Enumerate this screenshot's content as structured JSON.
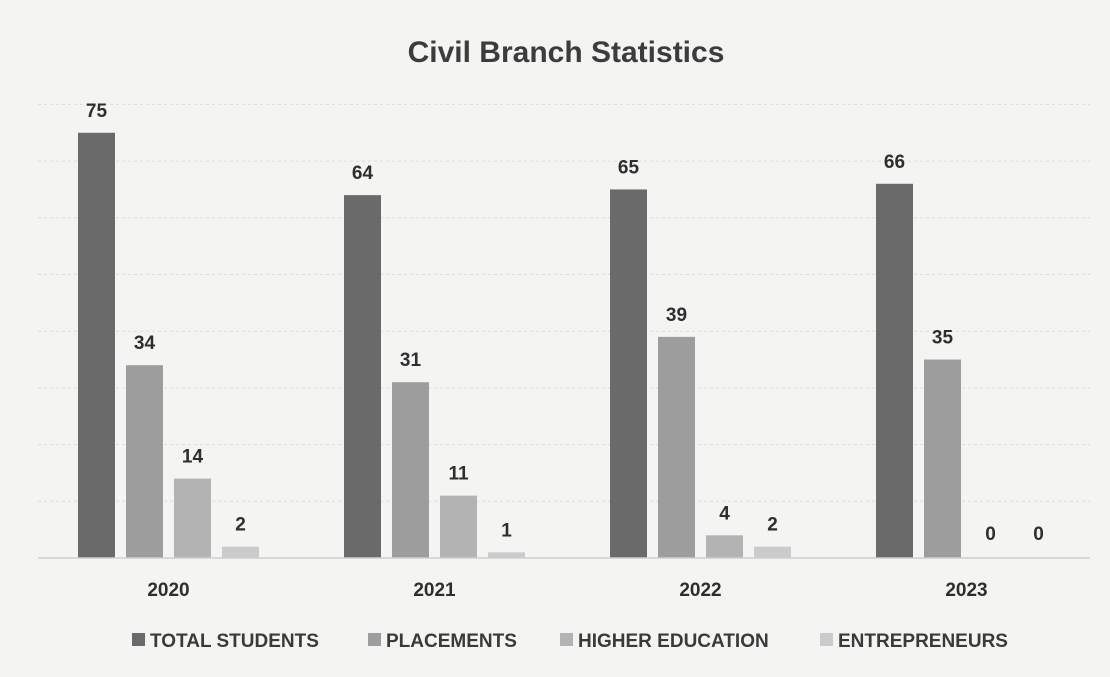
{
  "chart_data": {
    "type": "bar",
    "title": "Civil Branch Statistics",
    "categories": [
      "2020",
      "2021",
      "2022",
      "2023"
    ],
    "series": [
      {
        "name": "TOTAL STUDENTS",
        "color": "#6a6a6a",
        "values": [
          75,
          64,
          65,
          66
        ]
      },
      {
        "name": "PLACEMENTS",
        "color": "#9d9d9d",
        "values": [
          34,
          31,
          39,
          35
        ]
      },
      {
        "name": "HIGHER EDUCATION",
        "color": "#b3b3b3",
        "values": [
          14,
          11,
          4,
          0
        ]
      },
      {
        "name": "ENTREPRENEURS",
        "color": "#cbcbcb",
        "values": [
          2,
          1,
          2,
          0
        ]
      }
    ],
    "ylim": [
      0,
      80
    ],
    "grid": true,
    "legend_position": "bottom"
  }
}
